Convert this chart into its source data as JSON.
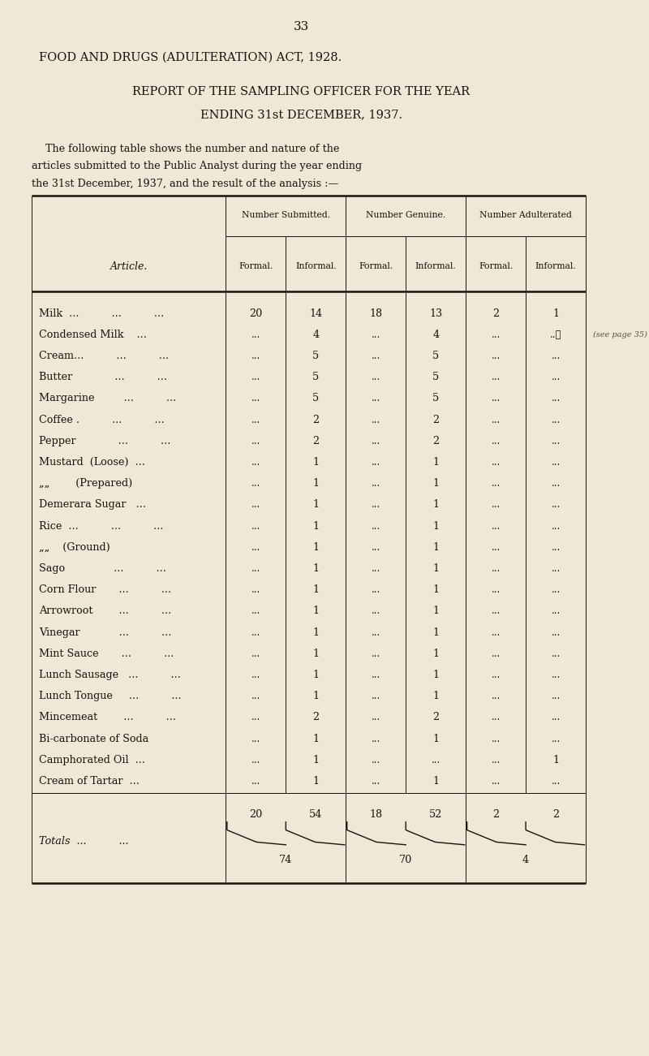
{
  "page_number": "33",
  "title1": "FOOD AND DRUGS (ADULTERATION) ACT, 1928.",
  "title2": "REPORT OF THE SAMPLING OFFICER FOR THE YEAR",
  "title3": "ENDING 31st DECEMBER, 1937.",
  "intro_line1": "  The following table shows the number and nature of the",
  "intro_line2": "articles submitted to the Public Analyst during the year ending",
  "intro_line3": "the 31st December, 1937, and the result of the analysis :—",
  "col_headers_top": [
    "Number Submitted.",
    "Number Genuine.",
    "Number Adulterated"
  ],
  "col_headers_sub": [
    "Formal.",
    "Informal.",
    "Formal.",
    "Informal.",
    "Formal.",
    "Informal."
  ],
  "article_col_label": "Article.",
  "rows": [
    {
      "article": "Milk  ...          ...          ...",
      "sub_f": "20",
      "sub_i": "14",
      "gen_f": "18",
      "gen_i": "13",
      "adu_f": "2",
      "adu_i": "1"
    },
    {
      "article": "Condensed Milk    ...",
      "sub_f": "",
      "sub_i": "4",
      "gen_f": "",
      "gen_i": "4",
      "adu_f": "",
      "adu_i": "...ℓ"
    },
    {
      "article": "Cream...          ...          ...",
      "sub_f": "",
      "sub_i": "5",
      "gen_f": "",
      "gen_i": "5",
      "adu_f": "",
      "adu_i": ""
    },
    {
      "article": "Butter             ...          ...",
      "sub_f": "",
      "sub_i": "5",
      "gen_f": "",
      "gen_i": "5",
      "adu_f": "",
      "adu_i": ""
    },
    {
      "article": "Margarine         ...          ...",
      "sub_f": "",
      "sub_i": "5",
      "gen_f": "",
      "gen_i": "5",
      "adu_f": "",
      "adu_i": ""
    },
    {
      "article": "Coffee .          ...          ...",
      "sub_f": "",
      "sub_i": "2",
      "gen_f": "",
      "gen_i": "2",
      "adu_f": "",
      "adu_i": ""
    },
    {
      "article": "Pepper             ...          ...",
      "sub_f": "",
      "sub_i": "2",
      "gen_f": "",
      "gen_i": "2",
      "adu_f": "",
      "adu_i": ""
    },
    {
      "article": "Mustard  (Loose)  ...",
      "sub_f": "",
      "sub_i": "1",
      "gen_f": "",
      "gen_i": "1",
      "adu_f": "",
      "adu_i": ""
    },
    {
      "article": "„„        (Prepared)",
      "sub_f": "",
      "sub_i": "1",
      "gen_f": "",
      "gen_i": "1",
      "adu_f": "",
      "adu_i": ""
    },
    {
      "article": "Demerara Sugar   ...",
      "sub_f": "",
      "sub_i": "1",
      "gen_f": "",
      "gen_i": "1",
      "adu_f": "",
      "adu_i": ""
    },
    {
      "article": "Rice  ...          ...          ...",
      "sub_f": "",
      "sub_i": "1",
      "gen_f": "",
      "gen_i": "1",
      "adu_f": "",
      "adu_i": ""
    },
    {
      "article": "„„    (Ground)",
      "sub_f": "",
      "sub_i": "1",
      "gen_f": "",
      "gen_i": "1",
      "adu_f": "",
      "adu_i": ""
    },
    {
      "article": "Sago               ...          ...",
      "sub_f": "",
      "sub_i": "1",
      "gen_f": "",
      "gen_i": "1",
      "adu_f": "",
      "adu_i": ""
    },
    {
      "article": "Corn Flour       ...          ...",
      "sub_f": "",
      "sub_i": "1",
      "gen_f": "",
      "gen_i": "1",
      "adu_f": "",
      "adu_i": ""
    },
    {
      "article": "Arrowroot        ...          ...",
      "sub_f": "",
      "sub_i": "1",
      "gen_f": "",
      "gen_i": "1",
      "adu_f": "",
      "adu_i": ""
    },
    {
      "article": "Vinegar            ...          ...",
      "sub_f": "",
      "sub_i": "1",
      "gen_f": "",
      "gen_i": "1",
      "adu_f": "",
      "adu_i": ""
    },
    {
      "article": "Mint Sauce       ...          ...",
      "sub_f": "",
      "sub_i": "1",
      "gen_f": "",
      "gen_i": "1",
      "adu_f": "",
      "adu_i": ""
    },
    {
      "article": "Lunch Sausage   ...          ...",
      "sub_f": "",
      "sub_i": "1",
      "gen_f": "",
      "gen_i": "1",
      "adu_f": "",
      "adu_i": ""
    },
    {
      "article": "Lunch Tongue     ...          ...",
      "sub_f": "",
      "sub_i": "1",
      "gen_f": "",
      "gen_i": "1",
      "adu_f": "",
      "adu_i": ""
    },
    {
      "article": "Mincemeat        ...          ...",
      "sub_f": "",
      "sub_i": "2",
      "gen_f": "",
      "gen_i": "2",
      "adu_f": "",
      "adu_i": ""
    },
    {
      "article": "Bi-carbonate of Soda",
      "sub_f": "",
      "sub_i": "1",
      "gen_f": "",
      "gen_i": "1",
      "adu_f": "",
      "adu_i": ""
    },
    {
      "article": "Camphorated Oil  ...",
      "sub_f": "",
      "sub_i": "1",
      "gen_f": "",
      "gen_i": "",
      "adu_f": "",
      "adu_i": "1"
    },
    {
      "article": "Cream of Tartar  ...",
      "sub_f": "",
      "sub_i": "1",
      "gen_f": "",
      "gen_i": "1",
      "adu_f": "",
      "adu_i": ""
    }
  ],
  "totals_sub_f": "20",
  "totals_sub_i": "54",
  "totals_gen_f": "18",
  "totals_gen_i": "52",
  "totals_adu_f": "2",
  "totals_adu_i": "2",
  "totals_sub": "74",
  "totals_gen": "70",
  "totals_adu": "4",
  "bg_color": "#ede8d8",
  "text_color": "#1a1208"
}
